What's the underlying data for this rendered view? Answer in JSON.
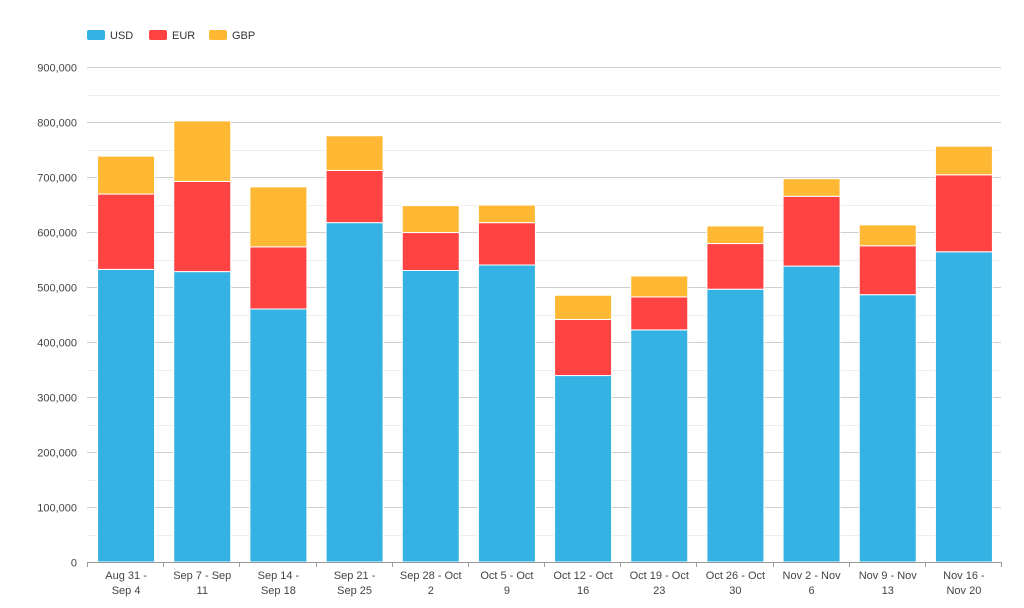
{
  "chart_data": {
    "type": "bar",
    "stacked": true,
    "title": "",
    "xlabel": "",
    "ylabel": "",
    "ylim": [
      0,
      900000
    ],
    "yticks": [
      0,
      100000,
      200000,
      300000,
      400000,
      500000,
      600000,
      700000,
      800000,
      900000
    ],
    "ytick_labels": [
      "0",
      "100,000",
      "200,000",
      "300,000",
      "400,000",
      "500,000",
      "600,000",
      "700,000",
      "800,000",
      "900,000"
    ],
    "grid": true,
    "legend_position": "top-left",
    "categories": [
      [
        "Aug 31 -",
        "Sep 4"
      ],
      [
        "Sep 7 - Sep",
        "11"
      ],
      [
        "Sep 14 -",
        "Sep 18"
      ],
      [
        "Sep 21 -",
        "Sep 25"
      ],
      [
        "Sep 28 - Oct",
        "2"
      ],
      [
        "Oct 5 - Oct",
        "9"
      ],
      [
        "Oct 12 - Oct",
        "16"
      ],
      [
        "Oct 19 - Oct",
        "23"
      ],
      [
        "Oct 26 - Oct",
        "30"
      ],
      [
        "Nov 2 - Nov",
        "6"
      ],
      [
        "Nov 9 - Nov",
        "13"
      ],
      [
        "Nov 16 -",
        "Nov 20"
      ]
    ],
    "series": [
      {
        "name": "USD",
        "color": "#33b2e3",
        "values": [
          532000,
          528000,
          460000,
          617000,
          530000,
          540000,
          339000,
          422000,
          496000,
          538000,
          486000,
          564000
        ]
      },
      {
        "name": "EUR",
        "color": "#ff4242",
        "values": [
          137000,
          164000,
          113000,
          95000,
          69000,
          77000,
          102000,
          60000,
          83000,
          127000,
          89000,
          140000
        ]
      },
      {
        "name": "GBP",
        "color": "#ffb833",
        "values": [
          69000,
          110000,
          109000,
          63000,
          49000,
          32000,
          44000,
          38000,
          32000,
          32000,
          38000,
          52000
        ]
      }
    ]
  }
}
